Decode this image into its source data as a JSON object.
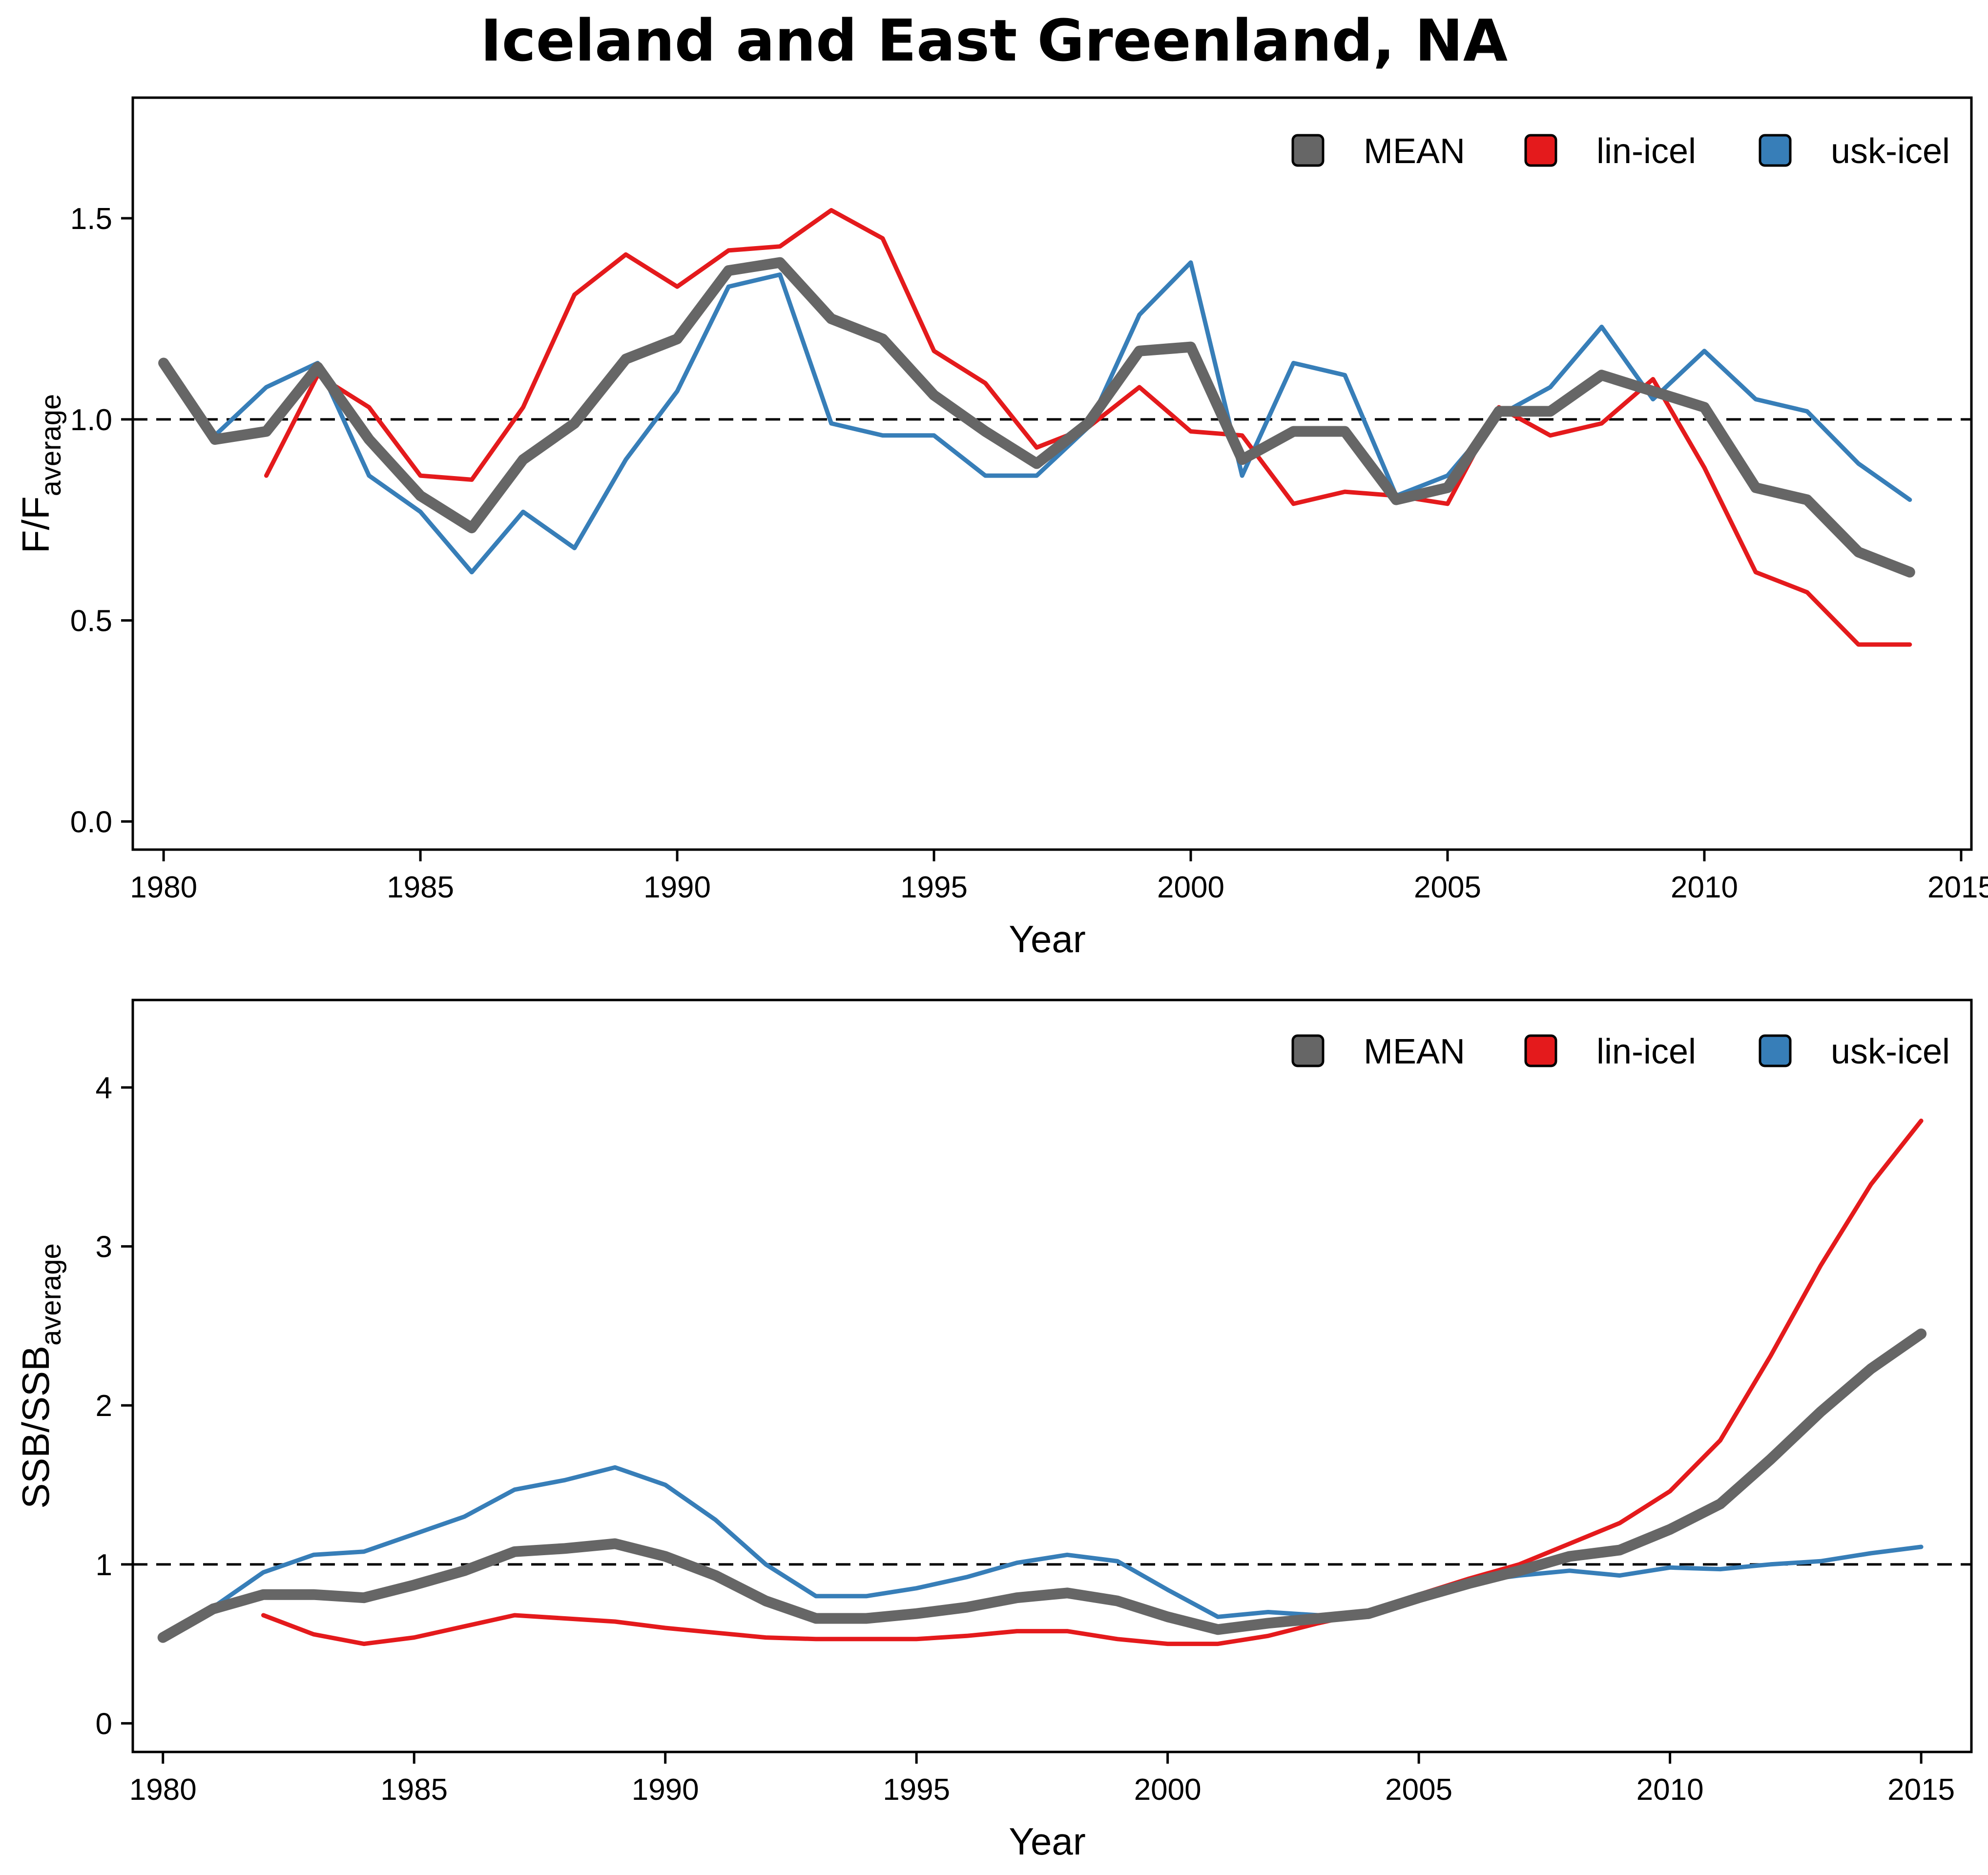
{
  "title": "Iceland and East Greenland, NA",
  "chart_data": [
    {
      "type": "line",
      "xlabel": "Year",
      "ylabel_main": "F/F",
      "ylabel_sub": "average",
      "xlim": [
        1979.4,
        2015.2
      ],
      "ylim": [
        -0.07,
        1.8
      ],
      "xticks": [
        1980,
        1985,
        1990,
        1995,
        2000,
        2005,
        2010,
        2015
      ],
      "yticks": [
        0.0,
        0.5,
        1.0,
        1.5
      ],
      "ytick_labels": [
        "0.0",
        "0.5",
        "1.0",
        "1.5"
      ],
      "reference_line": 1.0,
      "legend_position": "top-right",
      "series": [
        {
          "name": "MEAN",
          "color": "#666666",
          "x": [
            1980,
            1981,
            1982,
            1983,
            1984,
            1985,
            1986,
            1987,
            1988,
            1989,
            1990,
            1991,
            1992,
            1993,
            1994,
            1995,
            1996,
            1997,
            1998,
            1999,
            2000,
            2001,
            2002,
            2003,
            2004,
            2005,
            2006,
            2007,
            2008,
            2009,
            2010,
            2011,
            2012,
            2013,
            2014
          ],
          "y": [
            1.14,
            0.95,
            0.97,
            1.13,
            0.95,
            0.81,
            0.73,
            0.9,
            0.99,
            1.15,
            1.2,
            1.37,
            1.39,
            1.25,
            1.2,
            1.06,
            0.97,
            0.89,
            0.99,
            1.17,
            1.18,
            0.9,
            0.97,
            0.97,
            0.8,
            0.83,
            1.02,
            1.02,
            1.11,
            1.07,
            1.03,
            0.83,
            0.8,
            0.67,
            0.62
          ]
        },
        {
          "name": "lin-icel",
          "color": "#e41a1c",
          "x": [
            1982,
            1983,
            1984,
            1985,
            1986,
            1987,
            1988,
            1989,
            1990,
            1991,
            1992,
            1993,
            1994,
            1995,
            1996,
            1997,
            1998,
            1999,
            2000,
            2001,
            2002,
            2003,
            2004,
            2005,
            2006,
            2007,
            2008,
            2009,
            2010,
            2011,
            2012,
            2013,
            2014
          ],
          "y": [
            0.86,
            1.11,
            1.03,
            0.86,
            0.85,
            1.03,
            1.31,
            1.41,
            1.33,
            1.42,
            1.43,
            1.52,
            1.45,
            1.17,
            1.09,
            0.93,
            0.98,
            1.08,
            0.97,
            0.96,
            0.79,
            0.82,
            0.81,
            0.79,
            1.03,
            0.96,
            0.99,
            1.1,
            0.88,
            0.62,
            0.57,
            0.44,
            0.44
          ]
        },
        {
          "name": "usk-icel",
          "color": "#377eb8",
          "x": [
            1980,
            1981,
            1982,
            1983,
            1984,
            1985,
            1986,
            1987,
            1988,
            1989,
            1990,
            1991,
            1992,
            1993,
            1994,
            1995,
            1996,
            1997,
            1998,
            1999,
            2000,
            2001,
            2002,
            2003,
            2004,
            2005,
            2006,
            2007,
            2008,
            2009,
            2010,
            2011,
            2012,
            2013,
            2014
          ],
          "y": [
            1.14,
            0.96,
            1.08,
            1.14,
            0.86,
            0.77,
            0.62,
            0.77,
            0.68,
            0.9,
            1.07,
            1.33,
            1.36,
            0.99,
            0.96,
            0.96,
            0.86,
            0.86,
            0.98,
            1.26,
            1.39,
            0.86,
            1.14,
            1.11,
            0.81,
            0.86,
            1.01,
            1.08,
            1.23,
            1.05,
            1.17,
            1.05,
            1.02,
            0.89,
            0.8
          ]
        }
      ]
    },
    {
      "type": "line",
      "xlabel": "Year",
      "ylabel_main": "SSB/SSB",
      "ylabel_sub": "average",
      "xlim": [
        1979.4,
        2016.0
      ],
      "ylim": [
        -0.18,
        4.55
      ],
      "xticks": [
        1980,
        1985,
        1990,
        1995,
        2000,
        2005,
        2010,
        2015
      ],
      "yticks": [
        0,
        1,
        2,
        3,
        4
      ],
      "ytick_labels": [
        "0",
        "1",
        "2",
        "3",
        "4"
      ],
      "reference_line": 1.0,
      "legend_position": "top-right",
      "series": [
        {
          "name": "MEAN",
          "color": "#666666",
          "x": [
            1980,
            1981,
            1982,
            1983,
            1984,
            1985,
            1986,
            1987,
            1988,
            1989,
            1990,
            1991,
            1992,
            1993,
            1994,
            1995,
            1996,
            1997,
            1998,
            1999,
            2000,
            2001,
            2002,
            2003,
            2004,
            2005,
            2006,
            2007,
            2008,
            2009,
            2010,
            2011,
            2012,
            2013,
            2014,
            2015
          ],
          "y": [
            0.54,
            0.72,
            0.81,
            0.81,
            0.79,
            0.87,
            0.96,
            1.08,
            1.1,
            1.13,
            1.05,
            0.93,
            0.77,
            0.66,
            0.66,
            0.69,
            0.73,
            0.79,
            0.82,
            0.77,
            0.67,
            0.59,
            0.63,
            0.66,
            0.69,
            0.79,
            0.88,
            0.96,
            1.05,
            1.09,
            1.22,
            1.38,
            1.66,
            1.96,
            2.23,
            2.45
          ]
        },
        {
          "name": "lin-icel",
          "color": "#e41a1c",
          "x": [
            1982,
            1983,
            1984,
            1985,
            1986,
            1987,
            1988,
            1989,
            1990,
            1991,
            1992,
            1993,
            1994,
            1995,
            1996,
            1997,
            1998,
            1999,
            2000,
            2001,
            2002,
            2003,
            2004,
            2005,
            2006,
            2007,
            2008,
            2009,
            2010,
            2011,
            2012,
            2013,
            2014,
            2015
          ],
          "y": [
            0.68,
            0.56,
            0.5,
            0.54,
            0.61,
            0.68,
            0.66,
            0.64,
            0.6,
            0.57,
            0.54,
            0.53,
            0.53,
            0.53,
            0.55,
            0.58,
            0.58,
            0.53,
            0.5,
            0.5,
            0.55,
            0.63,
            0.7,
            0.81,
            0.91,
            1.0,
            1.13,
            1.26,
            1.46,
            1.78,
            2.31,
            2.88,
            3.39,
            3.79
          ]
        },
        {
          "name": "usk-icel",
          "color": "#377eb8",
          "x": [
            1980,
            1981,
            1982,
            1983,
            1984,
            1985,
            1986,
            1987,
            1988,
            1989,
            1990,
            1991,
            1992,
            1993,
            1994,
            1995,
            1996,
            1997,
            1998,
            1999,
            2000,
            2001,
            2002,
            2003,
            2004,
            2005,
            2006,
            2007,
            2008,
            2009,
            2010,
            2011,
            2012,
            2013,
            2014,
            2015
          ],
          "y": [
            0.53,
            0.73,
            0.95,
            1.06,
            1.08,
            1.19,
            1.3,
            1.47,
            1.53,
            1.61,
            1.5,
            1.28,
            1.0,
            0.8,
            0.8,
            0.85,
            0.92,
            1.01,
            1.06,
            1.02,
            0.84,
            0.67,
            0.7,
            0.68,
            0.67,
            0.78,
            0.89,
            0.93,
            0.96,
            0.93,
            0.98,
            0.97,
            1.0,
            1.02,
            1.07,
            1.11
          ]
        }
      ]
    }
  ]
}
